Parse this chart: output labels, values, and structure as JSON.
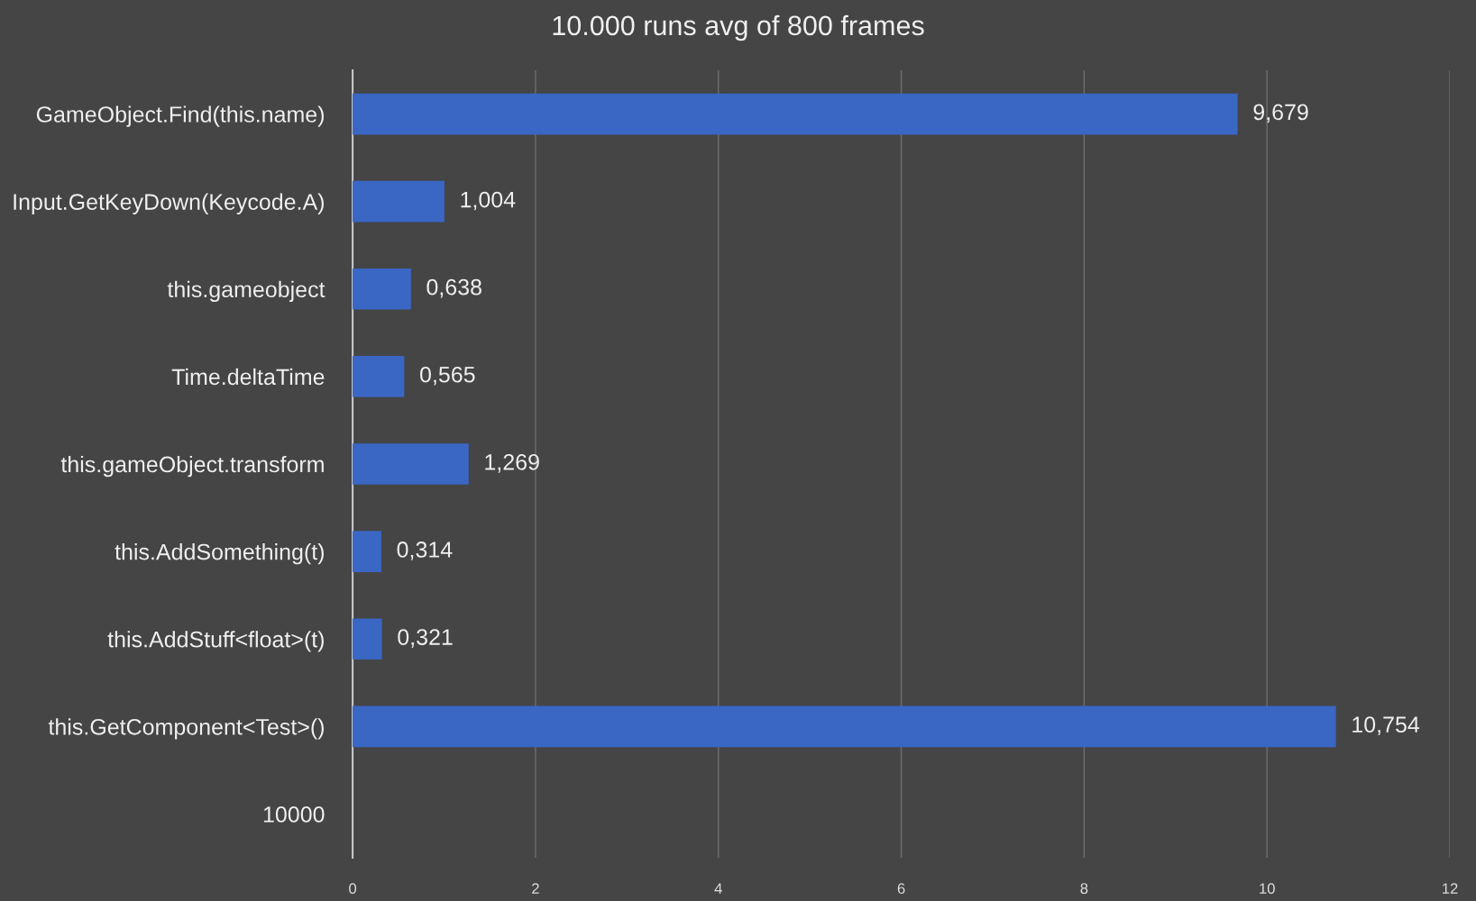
{
  "chart_data": {
    "type": "bar",
    "orientation": "horizontal",
    "title": "10.000 runs avg of 800 frames",
    "categories": [
      "GameObject.Find(this.name)",
      "Input.GetKeyDown(Keycode.A)",
      "this.gameobject",
      "Time.deltaTime",
      "this.gameObject.transform",
      "this.AddSomething(t)",
      "this.AddStuff<float>(t)",
      "this.GetComponent<Test>()",
      "10000"
    ],
    "values": [
      9.679,
      1.004,
      0.638,
      0.565,
      1.269,
      0.314,
      0.321,
      10.754,
      null
    ],
    "value_labels": [
      "9,679",
      "1,004",
      "0,638",
      "0,565",
      "1,269",
      "0,314",
      "0,321",
      "10,754",
      null
    ],
    "color": "#3a66c4",
    "xlim": [
      0,
      12
    ],
    "xticks": [
      0,
      2,
      4,
      6,
      8,
      10,
      12
    ],
    "grid": "x"
  }
}
